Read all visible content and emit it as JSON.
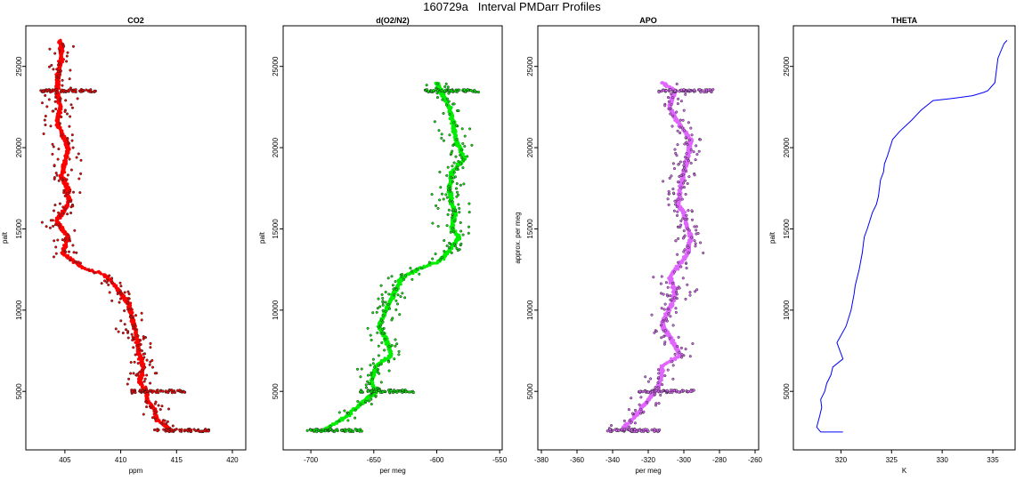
{
  "title": "160729a   Interval PMDarr Profiles",
  "chart_data": [
    {
      "type": "scatter",
      "title": "CO2",
      "xlabel": "ppm",
      "ylabel": "palt",
      "xlim": [
        401.5,
        421.2
      ],
      "ylim": [
        1400,
        27500
      ],
      "xticks": [
        405,
        410,
        415,
        420
      ],
      "yticks": [
        5000,
        10000,
        15000,
        20000,
        25000
      ],
      "color": "#ff0000",
      "profile": [
        [
          404.6,
          26600
        ],
        [
          404.7,
          25500
        ],
        [
          404.4,
          24500
        ],
        [
          404.3,
          23400
        ],
        [
          404.6,
          22500
        ],
        [
          404.3,
          21500
        ],
        [
          405.3,
          20000
        ],
        [
          405.0,
          19000
        ],
        [
          404.7,
          18300
        ],
        [
          405.2,
          17500
        ],
        [
          405.4,
          16700
        ],
        [
          404.8,
          16000
        ],
        [
          404.2,
          15500
        ],
        [
          405.3,
          14500
        ],
        [
          404.8,
          13500
        ],
        [
          406.6,
          12600
        ],
        [
          408.5,
          12200
        ],
        [
          409.5,
          11500
        ],
        [
          410.0,
          11000
        ],
        [
          410.8,
          10300
        ],
        [
          411.0,
          9500
        ],
        [
          411.4,
          8500
        ],
        [
          411.6,
          7500
        ],
        [
          412.0,
          6500
        ],
        [
          411.7,
          5600
        ],
        [
          412.3,
          5000
        ],
        [
          412.4,
          4400
        ],
        [
          413.0,
          3900
        ],
        [
          413.2,
          3300
        ],
        [
          414.5,
          2600
        ]
      ]
    },
    {
      "type": "scatter",
      "title": "d(O2/N2)",
      "xlabel": "per meg",
      "ylabel": "palt",
      "xlim": [
        -722,
        -548
      ],
      "ylim": [
        1400,
        27500
      ],
      "xticks": [
        -700,
        -650,
        -600,
        -550
      ],
      "yticks": [
        5000,
        10000,
        15000,
        20000,
        25000
      ],
      "color": "#00ee00",
      "profile": [
        [
          -600,
          24000
        ],
        [
          -597,
          23500
        ],
        [
          -590,
          22500
        ],
        [
          -587,
          21500
        ],
        [
          -585,
          20500
        ],
        [
          -578,
          19300
        ],
        [
          -588,
          18500
        ],
        [
          -590,
          17500
        ],
        [
          -588,
          16500
        ],
        [
          -585,
          16000
        ],
        [
          -588,
          15000
        ],
        [
          -582,
          14500
        ],
        [
          -592,
          13500
        ],
        [
          -598,
          13000
        ],
        [
          -615,
          12500
        ],
        [
          -628,
          12000
        ],
        [
          -632,
          11300
        ],
        [
          -637,
          10500
        ],
        [
          -642,
          9700
        ],
        [
          -646,
          9000
        ],
        [
          -640,
          8200
        ],
        [
          -636,
          7200
        ],
        [
          -648,
          6600
        ],
        [
          -652,
          5600
        ],
        [
          -648,
          5000
        ],
        [
          -673,
          3400
        ],
        [
          -690,
          2600
        ]
      ]
    },
    {
      "type": "scatter",
      "title": "APO",
      "xlabel": "per meg",
      "ylabel": "approx. per meg",
      "xlim": [
        -382,
        -258
      ],
      "ylim": [
        1400,
        27500
      ],
      "xticks": [
        -380,
        -360,
        -340,
        -320,
        -300,
        -280,
        -260
      ],
      "yticks": [
        5000,
        10000,
        15000,
        20000,
        25000
      ],
      "color": "#e066ff",
      "profile": [
        [
          -312,
          24000
        ],
        [
          -305,
          23500
        ],
        [
          -308,
          22500
        ],
        [
          -303,
          21500
        ],
        [
          -296,
          20500
        ],
        [
          -298,
          19300
        ],
        [
          -300,
          18500
        ],
        [
          -302,
          17500
        ],
        [
          -303,
          16500
        ],
        [
          -300,
          16000
        ],
        [
          -298,
          15000
        ],
        [
          -296,
          14500
        ],
        [
          -298,
          13500
        ],
        [
          -301,
          13000
        ],
        [
          -305,
          12500
        ],
        [
          -308,
          12000
        ],
        [
          -305,
          11300
        ],
        [
          -306,
          10500
        ],
        [
          -310,
          9700
        ],
        [
          -312,
          9000
        ],
        [
          -307,
          8200
        ],
        [
          -302,
          7200
        ],
        [
          -312,
          6600
        ],
        [
          -313,
          5600
        ],
        [
          -316,
          5000
        ],
        [
          -328,
          3400
        ],
        [
          -335,
          2600
        ]
      ]
    },
    {
      "type": "line",
      "title": "THETA",
      "xlabel": "K",
      "ylabel": "palt",
      "xlim": [
        315.3,
        337.2
      ],
      "ylim": [
        1400,
        27500
      ],
      "xticks": [
        320,
        325,
        330,
        335
      ],
      "yticks": [
        5000,
        10000,
        15000,
        20000,
        25000
      ],
      "color": "#0000ff",
      "x": [
        320.2,
        318.0,
        317.6,
        317.9,
        318.1,
        318.0,
        318.4,
        318.6,
        319.0,
        319.2,
        320.2,
        319.6,
        320.5,
        321.0,
        321.3,
        321.4,
        321.8,
        322.1,
        322.3,
        322.6,
        323.1,
        323.5,
        323.7,
        323.9,
        324.2,
        324.3,
        324.6,
        325.1,
        325.8,
        327.0,
        327.9,
        329.1,
        330.6,
        331.9,
        333.0,
        334.1,
        334.5,
        335.2,
        335.5,
        336.1,
        336.4
      ],
      "y": [
        2500,
        2500,
        2800,
        3500,
        4000,
        4500,
        5000,
        5500,
        6000,
        6500,
        7000,
        8000,
        9000,
        10000,
        11000,
        11500,
        12500,
        13500,
        14500,
        15000,
        16000,
        16500,
        17000,
        18000,
        18500,
        19000,
        19500,
        20500,
        21000,
        21700,
        22300,
        22900,
        23000,
        23100,
        23200,
        23400,
        23500,
        24000,
        25500,
        26400,
        26600
      ]
    }
  ]
}
